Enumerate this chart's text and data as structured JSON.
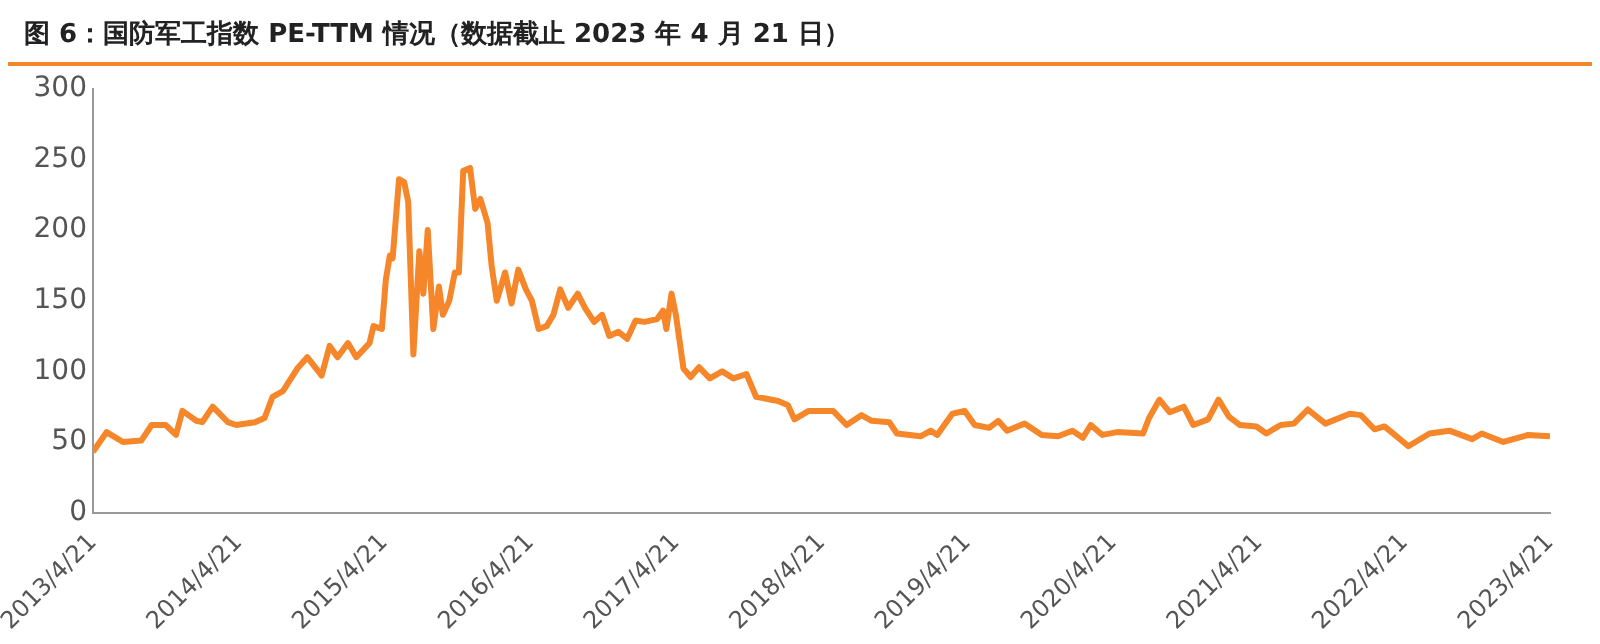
{
  "chart_data": {
    "type": "line",
    "title": "图 6：国防军工指数 PE-TTM 情况（数据截止 2023 年 4 月 21 日）",
    "x": [
      "2013-04-21",
      "2013-05-25",
      "2013-07-05",
      "2013-08-20",
      "2013-09-15",
      "2013-10-20",
      "2013-11-15",
      "2013-12-01",
      "2014-01-05",
      "2014-01-20",
      "2014-02-15",
      "2014-03-25",
      "2014-04-15",
      "2014-06-01",
      "2014-06-25",
      "2014-07-15",
      "2014-08-10",
      "2014-09-15",
      "2014-10-10",
      "2014-11-15",
      "2014-12-05",
      "2014-12-25",
      "2015-01-20",
      "2015-02-10",
      "2015-03-15",
      "2015-03-25",
      "2015-04-15",
      "2015-04-25",
      "2015-05-05",
      "2015-05-12",
      "2015-05-28",
      "2015-06-10",
      "2015-06-20",
      "2015-07-03",
      "2015-07-18",
      "2015-07-28",
      "2015-08-08",
      "2015-08-22",
      "2015-09-05",
      "2015-09-15",
      "2015-10-01",
      "2015-10-15",
      "2015-10-25",
      "2015-11-05",
      "2015-11-22",
      "2015-12-05",
      "2015-12-18",
      "2016-01-05",
      "2016-01-15",
      "2016-01-28",
      "2016-02-18",
      "2016-03-05",
      "2016-03-22",
      "2016-04-10",
      "2016-04-25",
      "2016-05-12",
      "2016-06-01",
      "2016-06-18",
      "2016-07-05",
      "2016-07-25",
      "2016-08-18",
      "2016-09-05",
      "2016-09-28",
      "2016-10-18",
      "2016-11-05",
      "2016-11-28",
      "2016-12-20",
      "2017-01-10",
      "2017-02-01",
      "2017-03-05",
      "2017-03-20",
      "2017-03-28",
      "2017-04-10",
      "2017-04-21",
      "2017-05-10",
      "2017-05-28",
      "2017-06-18",
      "2017-07-15",
      "2017-08-15",
      "2017-09-12",
      "2017-10-15",
      "2017-11-08",
      "2018-01-02",
      "2018-01-27",
      "2018-02-12",
      "2018-03-20",
      "2018-05-20",
      "2018-06-23",
      "2018-07-30",
      "2018-08-25",
      "2018-10-08",
      "2018-10-27",
      "2018-12-25",
      "2019-01-20",
      "2019-02-05",
      "2019-03-15",
      "2019-04-15",
      "2019-05-10",
      "2019-06-15",
      "2019-07-08",
      "2019-07-30",
      "2019-09-12",
      "2019-10-25",
      "2019-12-05",
      "2020-01-10",
      "2020-02-05",
      "2020-02-25",
      "2020-03-25",
      "2020-05-01",
      "2020-07-05",
      "2020-07-20",
      "2020-08-15",
      "2020-09-10",
      "2020-10-15",
      "2020-11-08",
      "2020-12-15",
      "2021-01-10",
      "2021-02-05",
      "2021-03-05",
      "2021-04-15",
      "2021-05-10",
      "2021-06-15",
      "2021-07-18",
      "2021-08-22",
      "2021-10-05",
      "2021-12-05",
      "2022-01-02",
      "2022-02-05",
      "2022-03-02",
      "2022-03-28",
      "2022-05-01",
      "2022-06-23",
      "2022-08-12",
      "2022-10-08",
      "2022-11-01",
      "2022-12-25",
      "2023-02-25",
      "2023-04-21"
    ],
    "series": [
      {
        "color": "#f5862a",
        "values": [
          43,
          57,
          50,
          51,
          62,
          62,
          55,
          72,
          65,
          64,
          75,
          64,
          62,
          64,
          67,
          82,
          86,
          102,
          110,
          97,
          118,
          110,
          120,
          110,
          120,
          132,
          130,
          165,
          182,
          180,
          236,
          234,
          220,
          112,
          185,
          155,
          200,
          130,
          160,
          140,
          150,
          170,
          170,
          242,
          244,
          215,
          222,
          205,
          175,
          150,
          170,
          148,
          172,
          158,
          150,
          130,
          132,
          140,
          158,
          145,
          155,
          145,
          135,
          140,
          125,
          128,
          123,
          136,
          135,
          137,
          143,
          130,
          155,
          140,
          102,
          96,
          103,
          95,
          100,
          95,
          98,
          82,
          79,
          76,
          66,
          72,
          72,
          62,
          69,
          65,
          64,
          56,
          54,
          58,
          55,
          70,
          72,
          62,
          60,
          65,
          58,
          63,
          55,
          54,
          58,
          53,
          62,
          55,
          57,
          56,
          67,
          80,
          71,
          75,
          62,
          66,
          80,
          68,
          62,
          61,
          56,
          62,
          63,
          73,
          63,
          70,
          69,
          59,
          61,
          55,
          47,
          56,
          58,
          52,
          56,
          50,
          55,
          54
        ]
      }
    ],
    "xlim": [
      "2013-04-21",
      "2023-04-21"
    ],
    "xticks": [
      {
        "value": "2013-04-21",
        "label": "2013/4/21"
      },
      {
        "value": "2014-04-21",
        "label": "2014/4/21"
      },
      {
        "value": "2015-04-21",
        "label": "2015/4/21"
      },
      {
        "value": "2016-04-21",
        "label": "2016/4/21"
      },
      {
        "value": "2017-04-21",
        "label": "2017/4/21"
      },
      {
        "value": "2018-04-21",
        "label": "2018/4/21"
      },
      {
        "value": "2019-04-21",
        "label": "2019/4/21"
      },
      {
        "value": "2020-04-21",
        "label": "2020/4/21"
      },
      {
        "value": "2021-04-21",
        "label": "2021/4/21"
      },
      {
        "value": "2022-04-21",
        "label": "2022/4/21"
      },
      {
        "value": "2023-04-21",
        "label": "2023/4/21"
      }
    ],
    "ylim": [
      0,
      300
    ],
    "yticks": [
      0,
      50,
      100,
      150,
      200,
      250,
      300
    ],
    "grid": false,
    "legend": false,
    "marker": "none",
    "line_style": "solid"
  }
}
